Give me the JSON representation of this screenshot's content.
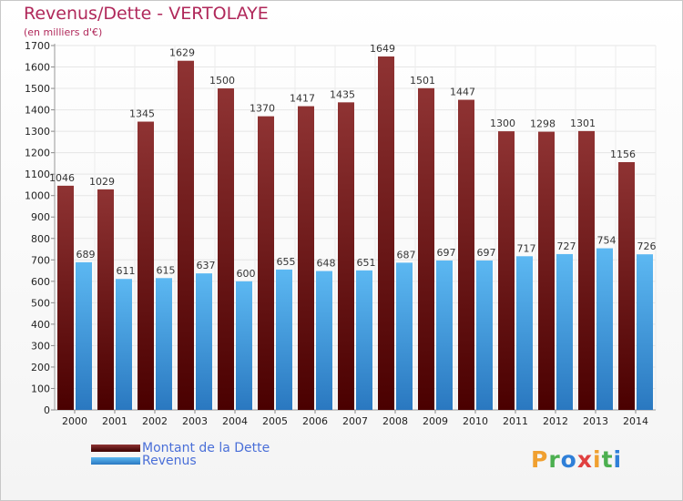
{
  "title": "Revenus/Dette - VERTOLAYE",
  "subtitle": "(en milliers d'€)",
  "logo": {
    "text": "Proxiti",
    "colors": [
      "#f0a030",
      "#4caf50",
      "#2f7fd8",
      "#e04040",
      "#f0a030",
      "#4caf50",
      "#2f7fd8"
    ]
  },
  "colors": {
    "dette": "#8b2a2a",
    "dette_dark": "#5a0a0a",
    "revenus": "#56b2ee",
    "revenus_dark": "#2a7ac0",
    "legend_text": "#4a6fd8",
    "title": "#b0285a"
  },
  "chart_data": {
    "type": "bar",
    "title": "Revenus/Dette - VERTOLAYE",
    "subtitle": "(en milliers d'€)",
    "categories": [
      "2000",
      "2001",
      "2002",
      "2003",
      "2004",
      "2005",
      "2006",
      "2007",
      "2008",
      "2009",
      "2010",
      "2011",
      "2012",
      "2013",
      "2014"
    ],
    "series": [
      {
        "name": "Montant de la Dette",
        "values": [
          1046,
          1029,
          1345,
          1629,
          1500,
          1370,
          1417,
          1435,
          1649,
          1501,
          1447,
          1300,
          1298,
          1301,
          1156
        ]
      },
      {
        "name": "Revenus",
        "values": [
          689,
          611,
          615,
          637,
          600,
          655,
          648,
          651,
          687,
          697,
          697,
          717,
          727,
          754,
          726
        ]
      }
    ],
    "yticks": [
      0,
      100,
      200,
      300,
      400,
      500,
      600,
      700,
      800,
      900,
      1000,
      1100,
      1200,
      1300,
      1400,
      1500,
      1600,
      1700
    ],
    "ylim": [
      0,
      1700
    ],
    "grid": true,
    "legend_position": "bottom-left"
  }
}
